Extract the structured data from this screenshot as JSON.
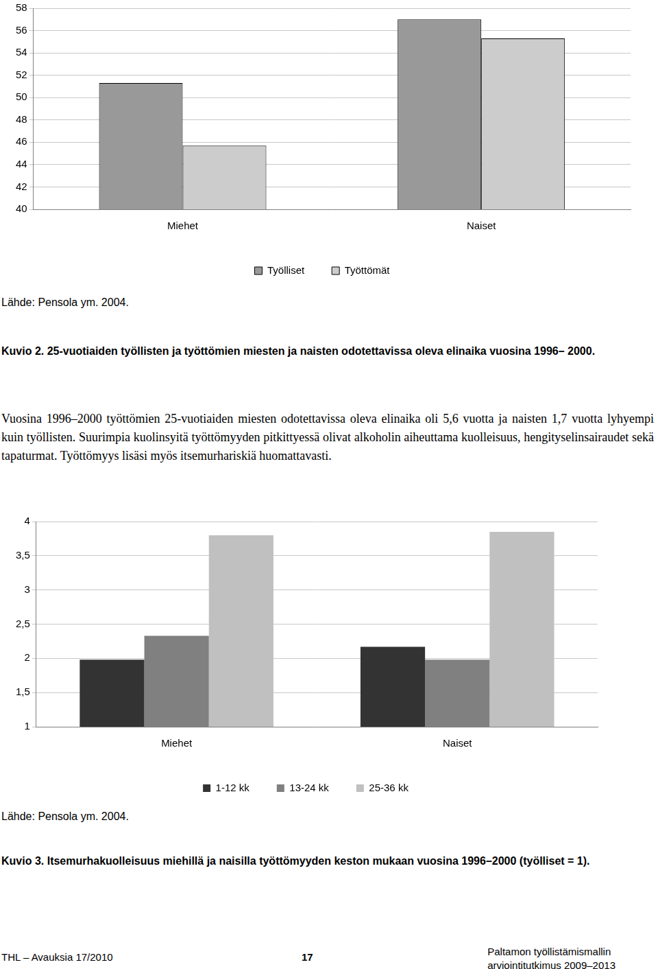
{
  "chart_data": [
    {
      "type": "bar",
      "categories": [
        "Miehet",
        "Naiset"
      ],
      "series": [
        {
          "name": "Työlliset",
          "color": "#999999",
          "values": [
            51.3,
            57.0
          ]
        },
        {
          "name": "Työttömät",
          "color": "#cccccc",
          "values": [
            45.7,
            55.3
          ]
        }
      ],
      "ylim": [
        40,
        58
      ],
      "yticks": [
        40,
        42,
        44,
        46,
        48,
        50,
        52,
        54,
        56,
        58
      ],
      "grid": true,
      "legend": "bottom"
    },
    {
      "type": "bar",
      "categories": [
        "Miehet",
        "Naiset"
      ],
      "series": [
        {
          "name": "1-12 kk",
          "color": "#333333",
          "values": [
            1.98,
            2.17
          ]
        },
        {
          "name": "13-24 kk",
          "color": "#808080",
          "values": [
            2.33,
            1.98
          ]
        },
        {
          "name": "25-36 kk",
          "color": "#c0c0c0",
          "values": [
            3.8,
            3.85
          ]
        }
      ],
      "ylim": [
        1,
        4
      ],
      "yticks": [
        1,
        {
          "value": 1.5,
          "label": "1,5"
        },
        2,
        {
          "value": 2.5,
          "label": "2,5"
        },
        3,
        {
          "value": 3.5,
          "label": "3,5"
        },
        4
      ],
      "grid": true,
      "legend": "bottom"
    }
  ],
  "page": {
    "source_1": "Lähde: Pensola ym. 2004.",
    "caption_1": "Kuvio 2. 25-vuotiaiden työllisten ja työttömien miesten ja naisten odotettavissa oleva elinaika vuosina 1996– 2000.",
    "paragraph": "Vuosina 1996–2000 työttömien 25-vuotiaiden miesten odotettavissa oleva elinaika oli 5,6 vuotta ja naisten 1,7 vuotta lyhyempi kuin työllisten. Suurimpia kuolinsyitä työttömyyden pitkittyessä olivat alkoholin aiheuttama kuolleisuus, hengityselinsairaudet sekä tapaturmat. Työttömyys lisäsi myös itsemurhariskiä huomattavasti.",
    "source_2": "Lähde: Pensola ym. 2004.",
    "caption_2": "Kuvio 3. Itsemurhakuolleisuus miehillä ja naisilla työttömyyden keston mukaan vuosina 1996–2000 (työlliset = 1).",
    "footer": {
      "left": "THL – Avauksia 17/2010",
      "page": "17",
      "right": [
        "Paltamon työllistämismallin",
        "arviointitutkimus 2009–2013"
      ]
    }
  }
}
